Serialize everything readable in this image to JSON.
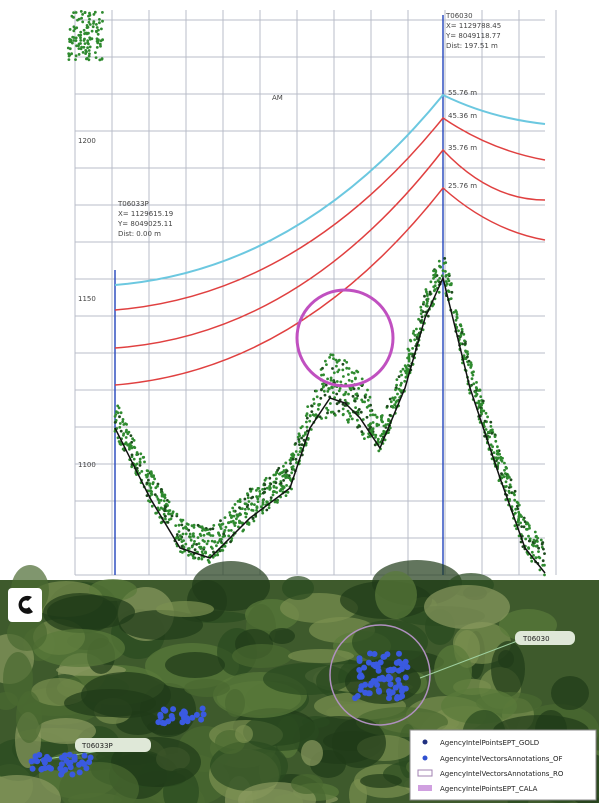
{
  "profile": {
    "title": "AM",
    "elevations": [
      "1200",
      "1150",
      "1100"
    ],
    "left_tower": {
      "name": "T06033P",
      "lines": [
        "X= 1129615.19",
        "Y= 8049025.11",
        "Dist: 0.00 m"
      ]
    },
    "right_tower": {
      "name": "T06030",
      "lines": [
        "X= 1129788.45",
        "Y= 8049118.77",
        "Dist: 197.51 m"
      ]
    },
    "curve_labels": [
      "55.76 m",
      "45.36 m",
      "35.76 m",
      "25.76 m"
    ]
  },
  "map": {
    "towers": [
      "T06030",
      "T06033P"
    ],
    "legend": [
      "AgencyIntelPointsEPT_GOLD",
      "AgencyIntelVectorsAnnotations_OF",
      "AgencyIntelVectorsAnnotations_RO",
      "AgencyIntelPointsEPT_CALA"
    ]
  }
}
